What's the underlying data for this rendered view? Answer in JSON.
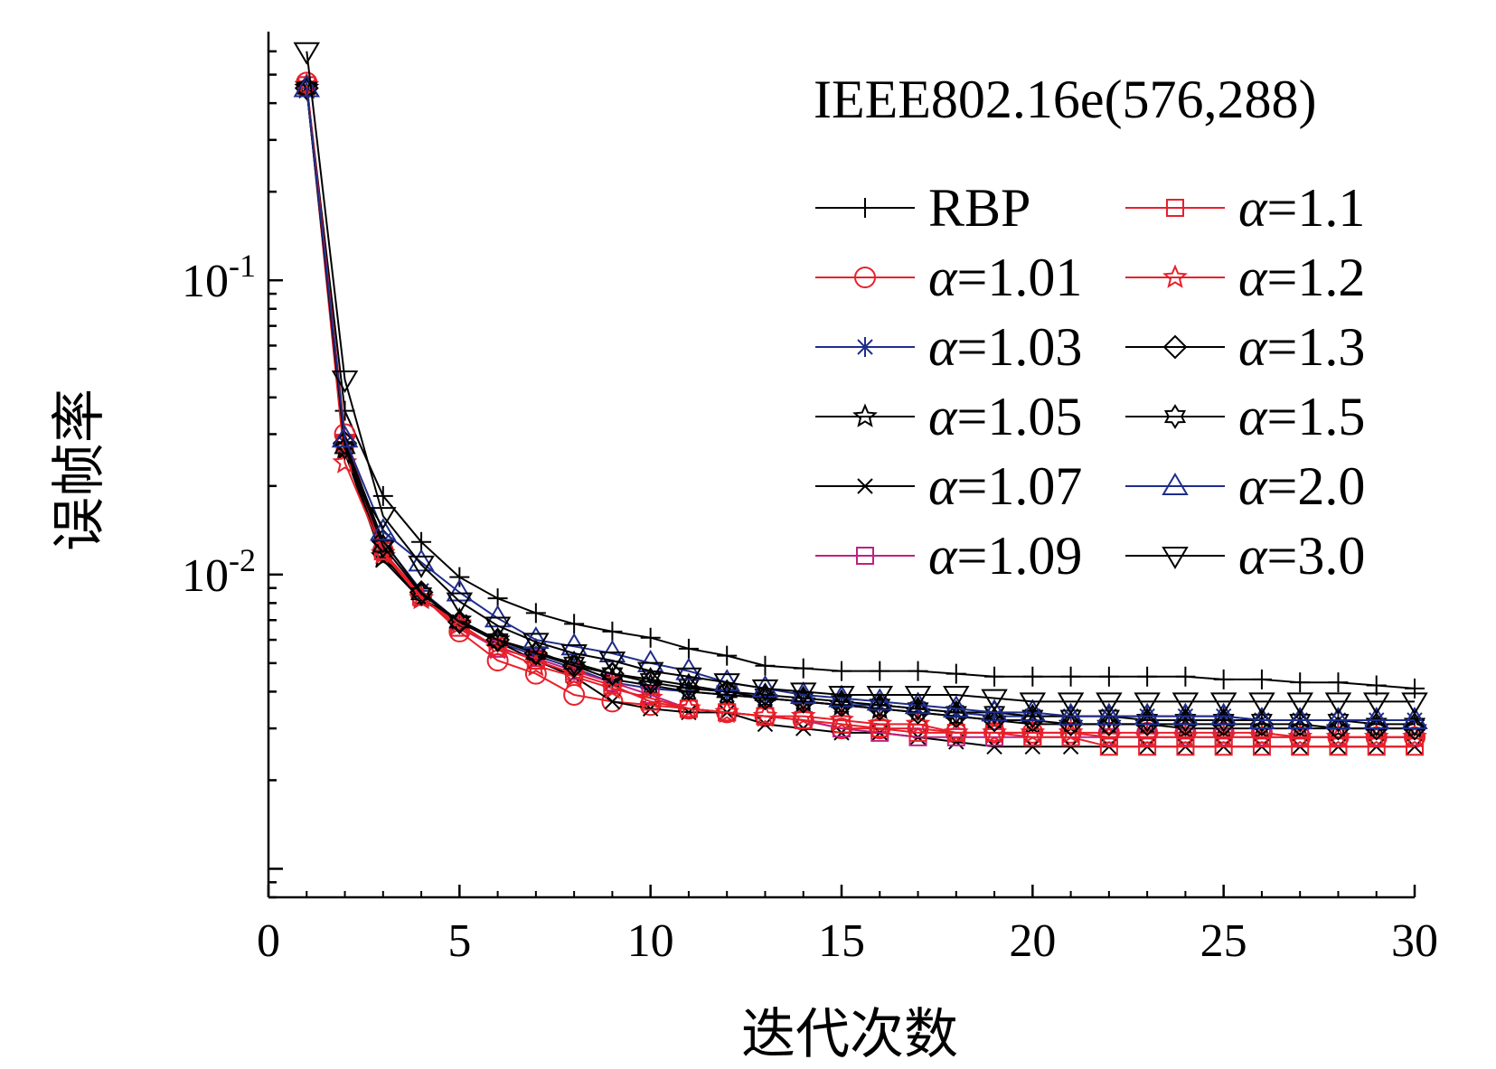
{
  "chart_data": {
    "type": "line",
    "title": "IEEE802.16e(576,288)",
    "xlabel": "迭代次数",
    "ylabel": "误帧率",
    "y_scale": "log",
    "xlim": [
      0,
      30
    ],
    "ylim": [
      0.0008,
      0.7
    ],
    "x_ticks": [
      "0",
      "5",
      "10",
      "15",
      "20",
      "25",
      "30"
    ],
    "x_tick_values": [
      0,
      5,
      10,
      15,
      20,
      25,
      30
    ],
    "y_ticks": [
      {
        "value": 0.1,
        "base": "10",
        "exp": "-1"
      },
      {
        "value": 0.01,
        "base": "10",
        "exp": "-2"
      }
    ],
    "grid": false,
    "legend_position": "top-right",
    "x": [
      1,
      2,
      3,
      4,
      5,
      6,
      7,
      8,
      9,
      10,
      11,
      12,
      13,
      14,
      15,
      16,
      17,
      18,
      19,
      20,
      21,
      22,
      23,
      24,
      25,
      26,
      27,
      28,
      29,
      30
    ],
    "series": [
      {
        "name": "RBP",
        "color": "#000000",
        "marker": "plus",
        "values": [
          0.46,
          0.036,
          0.0185,
          0.0129,
          0.0098,
          0.0083,
          0.0074,
          0.0068,
          0.0064,
          0.0061,
          0.0056,
          0.0053,
          0.0049,
          0.0048,
          0.0047,
          0.0047,
          0.0047,
          0.0046,
          0.0045,
          0.0045,
          0.0045,
          0.0045,
          0.0045,
          0.0045,
          0.0044,
          0.0044,
          0.0043,
          0.0043,
          0.0042,
          0.0041
        ]
      },
      {
        "name": "α=1.01",
        "color": "#e8202a",
        "marker": "circle",
        "values": [
          0.47,
          0.03,
          0.012,
          0.0085,
          0.0064,
          0.0051,
          0.0046,
          0.0039,
          0.0037,
          0.0036,
          0.0035,
          0.0034,
          0.0033,
          0.0032,
          0.003,
          0.003,
          0.003,
          0.0029,
          0.0029,
          0.0029,
          0.0029,
          0.0029,
          0.0029,
          0.0029,
          0.0029,
          0.0029,
          0.0028,
          0.0028,
          0.0028,
          0.0028
        ]
      },
      {
        "name": "α=1.03",
        "color": "#1f2d8a",
        "marker": "asterisk",
        "values": [
          0.45,
          0.028,
          0.013,
          0.0088,
          0.0069,
          0.0059,
          0.0053,
          0.0048,
          0.0043,
          0.0041,
          0.004,
          0.0039,
          0.0038,
          0.0037,
          0.0036,
          0.0036,
          0.0035,
          0.0034,
          0.0033,
          0.0033,
          0.0033,
          0.0033,
          0.0033,
          0.0033,
          0.0033,
          0.0032,
          0.0032,
          0.0032,
          0.0032,
          0.0032
        ]
      },
      {
        "name": "α=1.05",
        "color": "#000000",
        "marker": "star",
        "values": [
          0.45,
          0.027,
          0.0115,
          0.0083,
          0.007,
          0.006,
          0.0055,
          0.0049,
          0.0044,
          0.0042,
          0.004,
          0.0039,
          0.0038,
          0.0037,
          0.0036,
          0.0035,
          0.0034,
          0.0033,
          0.0032,
          0.0031,
          0.0031,
          0.0031,
          0.0031,
          0.003,
          0.003,
          0.003,
          0.003,
          0.003,
          0.003,
          0.003
        ]
      },
      {
        "name": "α=1.07",
        "color": "#000000",
        "marker": "x",
        "values": [
          0.45,
          0.026,
          0.0112,
          0.0082,
          0.0069,
          0.0059,
          0.0051,
          0.0045,
          0.0037,
          0.0035,
          0.0034,
          0.0034,
          0.0031,
          0.003,
          0.0029,
          0.0029,
          0.0028,
          0.0027,
          0.0026,
          0.0026,
          0.0026,
          0.0026,
          0.0026,
          0.0026,
          0.0026,
          0.0026,
          0.0026,
          0.0026,
          0.0026,
          0.0026
        ]
      },
      {
        "name": "α=1.09",
        "color": "#c0207f",
        "marker": "square",
        "values": [
          0.46,
          0.028,
          0.012,
          0.0084,
          0.0066,
          0.0056,
          0.0052,
          0.0047,
          0.0043,
          0.0039,
          0.0035,
          0.0034,
          0.0033,
          0.0032,
          0.003,
          0.0029,
          0.0028,
          0.0028,
          0.0028,
          0.0028,
          0.0028,
          0.0028,
          0.0028,
          0.0028,
          0.0028,
          0.0028,
          0.0028,
          0.0028,
          0.0028,
          0.0028
        ]
      },
      {
        "name": "α=1.1",
        "color": "#e8202a",
        "marker": "square",
        "values": [
          0.46,
          0.028,
          0.012,
          0.0084,
          0.0066,
          0.0057,
          0.0051,
          0.0046,
          0.0042,
          0.0037,
          0.0035,
          0.0034,
          0.0033,
          0.0032,
          0.0031,
          0.003,
          0.0029,
          0.0029,
          0.0029,
          0.0028,
          0.0028,
          0.0026,
          0.0026,
          0.0026,
          0.0026,
          0.0026,
          0.0026,
          0.0026,
          0.0026,
          0.0026
        ]
      },
      {
        "name": "α=1.2",
        "color": "#e8202a",
        "marker": "star",
        "values": [
          0.46,
          0.024,
          0.0118,
          0.0083,
          0.0068,
          0.0056,
          0.0049,
          0.0045,
          0.0041,
          0.0038,
          0.0035,
          0.0034,
          0.0033,
          0.0033,
          0.0032,
          0.0031,
          0.0031,
          0.0029,
          0.0029,
          0.0029,
          0.0029,
          0.0028,
          0.0028,
          0.0028,
          0.0028,
          0.0028,
          0.0028,
          0.0028,
          0.0028,
          0.0028
        ]
      },
      {
        "name": "α=1.3",
        "color": "#000000",
        "marker": "diamond",
        "values": [
          0.45,
          0.028,
          0.013,
          0.0087,
          0.0069,
          0.006,
          0.0054,
          0.0049,
          0.0046,
          0.0043,
          0.0041,
          0.004,
          0.0038,
          0.0037,
          0.0036,
          0.0035,
          0.0034,
          0.0033,
          0.0032,
          0.0032,
          0.0031,
          0.0031,
          0.0031,
          0.0031,
          0.0031,
          0.0031,
          0.0031,
          0.003,
          0.003,
          0.003
        ]
      },
      {
        "name": "α=1.5",
        "color": "#000000",
        "marker": "hexstar",
        "values": [
          0.45,
          0.027,
          0.0125,
          0.0086,
          0.0069,
          0.006,
          0.0054,
          0.005,
          0.0046,
          0.0044,
          0.0042,
          0.004,
          0.0039,
          0.0038,
          0.0037,
          0.0036,
          0.0035,
          0.0034,
          0.0034,
          0.0033,
          0.0033,
          0.0033,
          0.0032,
          0.0032,
          0.0032,
          0.0032,
          0.0032,
          0.0032,
          0.0031,
          0.0031
        ]
      },
      {
        "name": "α=2.0",
        "color": "#1f2d8a",
        "marker": "triangle-up",
        "values": [
          0.45,
          0.029,
          0.014,
          0.011,
          0.0087,
          0.0071,
          0.006,
          0.0057,
          0.0054,
          0.005,
          0.0047,
          0.0043,
          0.0041,
          0.0039,
          0.0038,
          0.0037,
          0.0036,
          0.0035,
          0.0034,
          0.0034,
          0.0033,
          0.0033,
          0.0033,
          0.0033,
          0.0033,
          0.0032,
          0.0032,
          0.0032,
          0.0032,
          0.0032
        ]
      },
      {
        "name": "α=3.0",
        "color": "#000000",
        "marker": "triangle-down",
        "values": [
          0.6,
          0.046,
          0.0158,
          0.0108,
          0.0081,
          0.0067,
          0.0059,
          0.0054,
          0.0051,
          0.0047,
          0.0045,
          0.0043,
          0.0041,
          0.004,
          0.0039,
          0.0039,
          0.0039,
          0.0039,
          0.0038,
          0.0037,
          0.0037,
          0.0037,
          0.0037,
          0.0037,
          0.0037,
          0.0037,
          0.0037,
          0.0037,
          0.0037,
          0.0037
        ]
      }
    ]
  }
}
